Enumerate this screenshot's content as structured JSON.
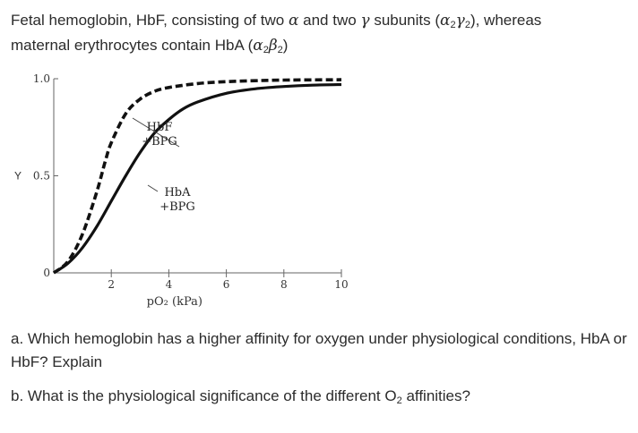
{
  "intro": {
    "line1_a": "Fetal hemoglobin, HbF, consisting of two ",
    "alpha": "α",
    "line1_b": " and two ",
    "gamma": "γ",
    "line1_c": " subunits (",
    "g1": "α",
    "s1": "2",
    "g2": "γ",
    "s2": "2",
    "line1_d": "), whereas",
    "line2_a": "maternal erythrocytes contain HbA (",
    "g3": "α",
    "s3": "2",
    "g4": "β",
    "s4": "2",
    "line2_b": ")"
  },
  "chart_data": {
    "type": "line",
    "xlabel": "pO₂ (kPa)",
    "ylabel": "Y",
    "xlim": [
      0,
      10
    ],
    "ylim": [
      0,
      1.0
    ],
    "x_ticks": [
      2,
      4,
      6,
      8,
      10
    ],
    "y_ticks": [
      0,
      0.5,
      1.0
    ],
    "x_tick_labels": [
      "2",
      "4",
      "6",
      "8",
      "10"
    ],
    "y_tick_labels": [
      "0",
      "0.5",
      "1.0"
    ],
    "grid": false,
    "series": [
      {
        "name": "HbF +BPG",
        "label_lines": [
          "HbF",
          "+BPG"
        ],
        "style": "dashed",
        "x": [
          0,
          0.5,
          1.0,
          1.5,
          1.8,
          2.0,
          2.5,
          3.0,
          3.5,
          4.0,
          5.0,
          6.0,
          7.0,
          8.0,
          10.0
        ],
        "y": [
          0,
          0.06,
          0.2,
          0.42,
          0.58,
          0.67,
          0.82,
          0.895,
          0.935,
          0.955,
          0.975,
          0.985,
          0.99,
          0.993,
          0.995
        ]
      },
      {
        "name": "HbA +BPG",
        "label_lines": [
          "HbA",
          "+BPG"
        ],
        "style": "solid",
        "x": [
          0,
          0.5,
          1.0,
          1.5,
          2.0,
          2.5,
          3.0,
          3.5,
          4.0,
          4.5,
          5.0,
          6.0,
          7.0,
          8.0,
          9.0,
          10.0
        ],
        "y": [
          0,
          0.05,
          0.13,
          0.24,
          0.37,
          0.5,
          0.62,
          0.72,
          0.79,
          0.845,
          0.88,
          0.925,
          0.948,
          0.96,
          0.967,
          0.97
        ]
      }
    ]
  },
  "questions": {
    "a": "a. Which hemoglobin has a higher affinity for oxygen under physiological conditions, HbA or HbF? Explain",
    "b_prefix": "b. What is the physiological significance of the different O",
    "b_sub": "2",
    "b_suffix": " affinities?"
  }
}
